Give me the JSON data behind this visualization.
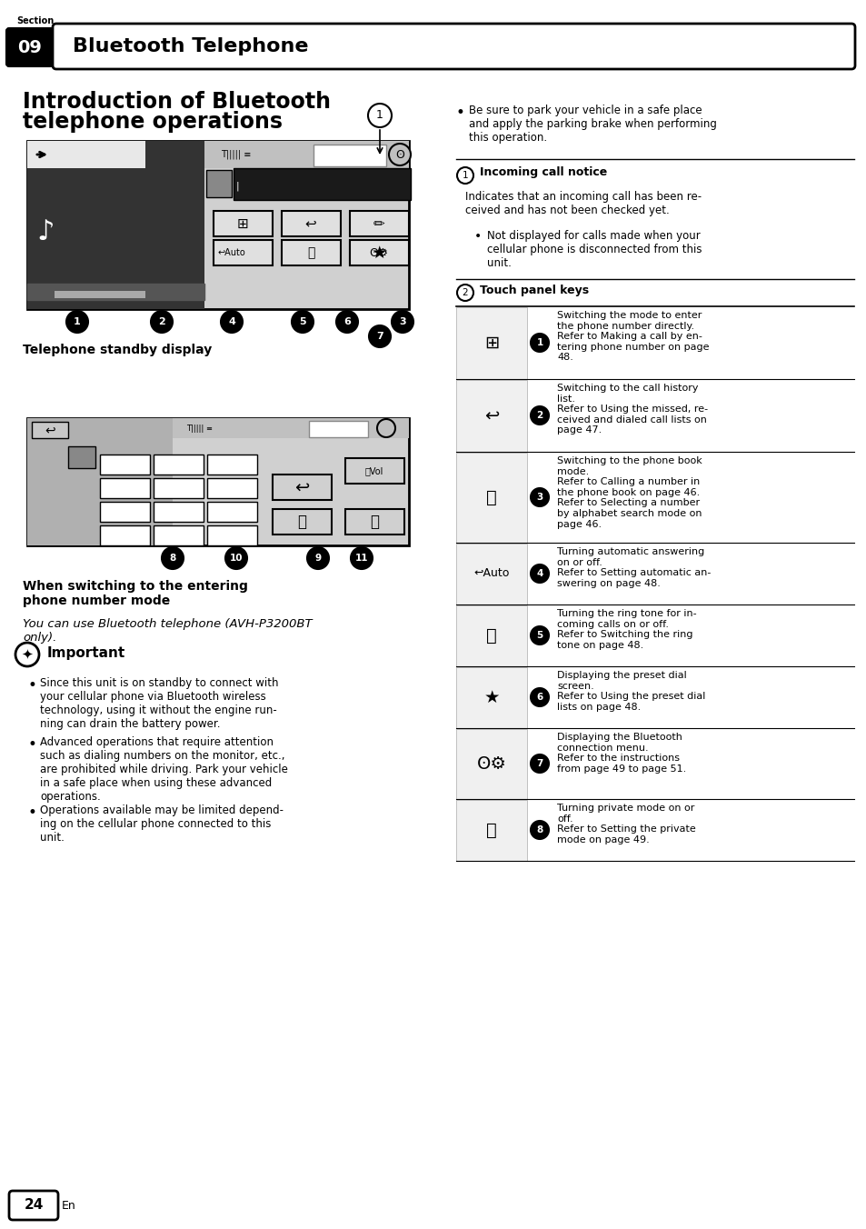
{
  "bg_color": "#ffffff",
  "section_label": "Section",
  "section_num": "09",
  "section_title": "Bluetooth Telephone",
  "page_title_line1": "Introduction of Bluetooth",
  "page_title_line2": "telephone operations",
  "caption1": "Telephone standby display",
  "caption2": "When switching to the entering\nphone number mode",
  "italic_text": "You can use Bluetooth telephone (AVH-P3200BT\nonly).",
  "important_header": "Important",
  "bullet1": "Since this unit is on standby to connect with\nyour cellular phone via Bluetooth wireless\ntechnology, using it without the engine run-\nning can drain the battery power.",
  "bullet2": "Advanced operations that require attention\nsuch as dialing numbers on the monitor, etc.,\nare prohibited while driving. Park your vehicle\nin a safe place when using these advanced\noperations.",
  "bullet3": "Operations available may be limited depend-\ning on the cellular phone connected to this\nunit.",
  "right_bullet1": "Be sure to park your vehicle in a safe place\nand apply the parking brake when performing\nthis operation.",
  "circled1_header": "Incoming call notice",
  "circled1_text": "Indicates that an incoming call has been re-\nceived and has not been checked yet.",
  "circled1_sub": "Not displayed for calls made when your\ncellular phone is disconnected from this\nunit.",
  "circled2_header": "Touch panel keys",
  "table_rows": [
    {
      "num": "1",
      "desc": "Switching the mode to enter\nthe phone number directly.\nRefer to Making a call by en-\ntering phone number on page\n48."
    },
    {
      "num": "2",
      "desc": "Switching to the call history\nlist.\nRefer to Using the missed, re-\nceived and dialed call lists on\npage 47."
    },
    {
      "num": "3",
      "desc": "Switching to the phone book\nmode.\nRefer to Calling a number in\nthe phone book on page 46.\nRefer to Selecting a number\nby alphabet search mode on\npage 46."
    },
    {
      "num": "4",
      "desc": "Turning automatic answering\non or off.\nRefer to Setting automatic an-\nswering on page 48."
    },
    {
      "num": "5",
      "desc": "Turning the ring tone for in-\ncoming calls on or off.\nRefer to Switching the ring\ntone on page 48."
    },
    {
      "num": "6",
      "desc": "Displaying the preset dial\nscreen.\nRefer to Using the preset dial\nlists on page 48."
    },
    {
      "num": "7",
      "desc": "Displaying the Bluetooth\nconnection menu.\nRefer to the instructions\nfrom page 49 to page 51."
    },
    {
      "num": "8",
      "desc": "Turning private mode on or\noff.\nRefer to Setting the private\nmode on page 49."
    }
  ],
  "page_num": "24"
}
